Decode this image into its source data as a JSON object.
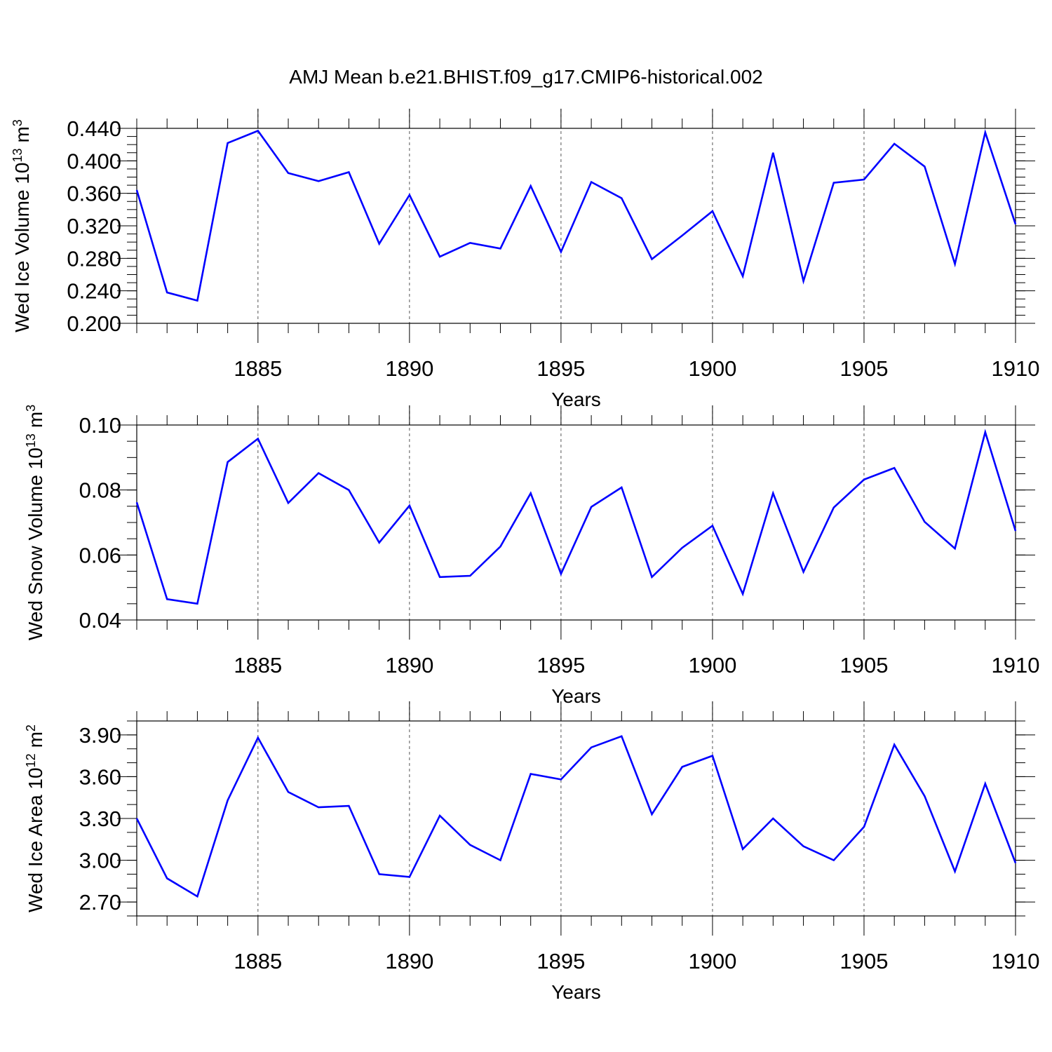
{
  "figure_title": "AMJ Mean b.e21.BHIST.f09_g17.CMIP6-historical.002",
  "line_color": "#0000ff",
  "chart_data": [
    {
      "type": "line",
      "title": "AMJ Mean b.e21.BHIST.f09_g17.CMIP6-historical.002",
      "xlabel": "Years",
      "ylabel_main": "Wed Ice Volume 10",
      "ylabel_exp": "13",
      "ylabel_unit": "m",
      "ylabel_unit_exp": "3",
      "xlim": [
        1881,
        1910
      ],
      "ylim": [
        0.2,
        0.44
      ],
      "x_ticks": [
        "1885",
        "1890",
        "1895",
        "1900",
        "1905",
        "1910"
      ],
      "y_ticks": [
        "0.200",
        "0.240",
        "0.280",
        "0.320",
        "0.360",
        "0.400",
        "0.440"
      ],
      "grid": "vertical dashed at labeled years",
      "series": [
        {
          "name": "Wed Ice Volume",
          "x": [
            1881,
            1882,
            1883,
            1884,
            1885,
            1886,
            1887,
            1888,
            1889,
            1890,
            1891,
            1892,
            1893,
            1894,
            1895,
            1896,
            1897,
            1898,
            1899,
            1900,
            1901,
            1902,
            1903,
            1904,
            1905,
            1906,
            1907,
            1908,
            1909,
            1910
          ],
          "values": [
            0.364,
            0.238,
            0.228,
            0.422,
            0.437,
            0.385,
            0.375,
            0.386,
            0.298,
            0.358,
            0.282,
            0.299,
            0.292,
            0.369,
            0.288,
            0.374,
            0.354,
            0.279,
            0.308,
            0.338,
            0.258,
            0.41,
            0.252,
            0.373,
            0.377,
            0.421,
            0.393,
            0.273,
            0.435,
            0.322
          ]
        }
      ]
    },
    {
      "type": "line",
      "xlabel": "Years",
      "ylabel_main": "Wed Snow Volume 10",
      "ylabel_exp": "13",
      "ylabel_unit": "m",
      "ylabel_unit_exp": "3",
      "xlim": [
        1881,
        1910
      ],
      "ylim": [
        0.04,
        0.1
      ],
      "x_ticks": [
        "1885",
        "1890",
        "1895",
        "1900",
        "1905",
        "1910"
      ],
      "y_ticks": [
        "0.04",
        "0.06",
        "0.08",
        "0.10"
      ],
      "grid": "vertical dashed at labeled years",
      "series": [
        {
          "name": "Wed Snow Volume",
          "x": [
            1881,
            1882,
            1883,
            1884,
            1885,
            1886,
            1887,
            1888,
            1889,
            1890,
            1891,
            1892,
            1893,
            1894,
            1895,
            1896,
            1897,
            1898,
            1899,
            1900,
            1901,
            1902,
            1903,
            1904,
            1905,
            1906,
            1907,
            1908,
            1909,
            1910
          ],
          "values": [
            0.0762,
            0.0464,
            0.045,
            0.0886,
            0.0958,
            0.076,
            0.0852,
            0.08,
            0.0638,
            0.0752,
            0.0532,
            0.0536,
            0.0626,
            0.079,
            0.0542,
            0.0748,
            0.0808,
            0.0532,
            0.0622,
            0.069,
            0.048,
            0.079,
            0.0548,
            0.0746,
            0.0832,
            0.0868,
            0.0702,
            0.062,
            0.0978,
            0.0674
          ]
        }
      ]
    },
    {
      "type": "line",
      "xlabel": "Years",
      "ylabel_main": "Wed Ice Area 10",
      "ylabel_exp": "12",
      "ylabel_unit": "m",
      "ylabel_unit_exp": "2",
      "xlim": [
        1881,
        1910
      ],
      "ylim": [
        2.6,
        4.0
      ],
      "x_ticks": [
        "1885",
        "1890",
        "1895",
        "1900",
        "1905",
        "1910"
      ],
      "y_ticks": [
        "2.70",
        "3.00",
        "3.30",
        "3.60",
        "3.90"
      ],
      "grid": "vertical dashed at labeled years",
      "series": [
        {
          "name": "Wed Ice Area",
          "x": [
            1881,
            1882,
            1883,
            1884,
            1885,
            1886,
            1887,
            1888,
            1889,
            1890,
            1891,
            1892,
            1893,
            1894,
            1895,
            1896,
            1897,
            1898,
            1899,
            1900,
            1901,
            1902,
            1903,
            1904,
            1905,
            1906,
            1907,
            1908,
            1909,
            1910
          ],
          "values": [
            3.3,
            2.87,
            2.74,
            3.43,
            3.88,
            3.49,
            3.38,
            3.39,
            2.9,
            2.88,
            3.32,
            3.11,
            3.0,
            3.62,
            3.58,
            3.81,
            3.89,
            3.33,
            3.67,
            3.75,
            3.08,
            3.3,
            3.1,
            3.0,
            3.24,
            3.83,
            3.46,
            2.92,
            3.55,
            2.98
          ]
        }
      ]
    }
  ]
}
